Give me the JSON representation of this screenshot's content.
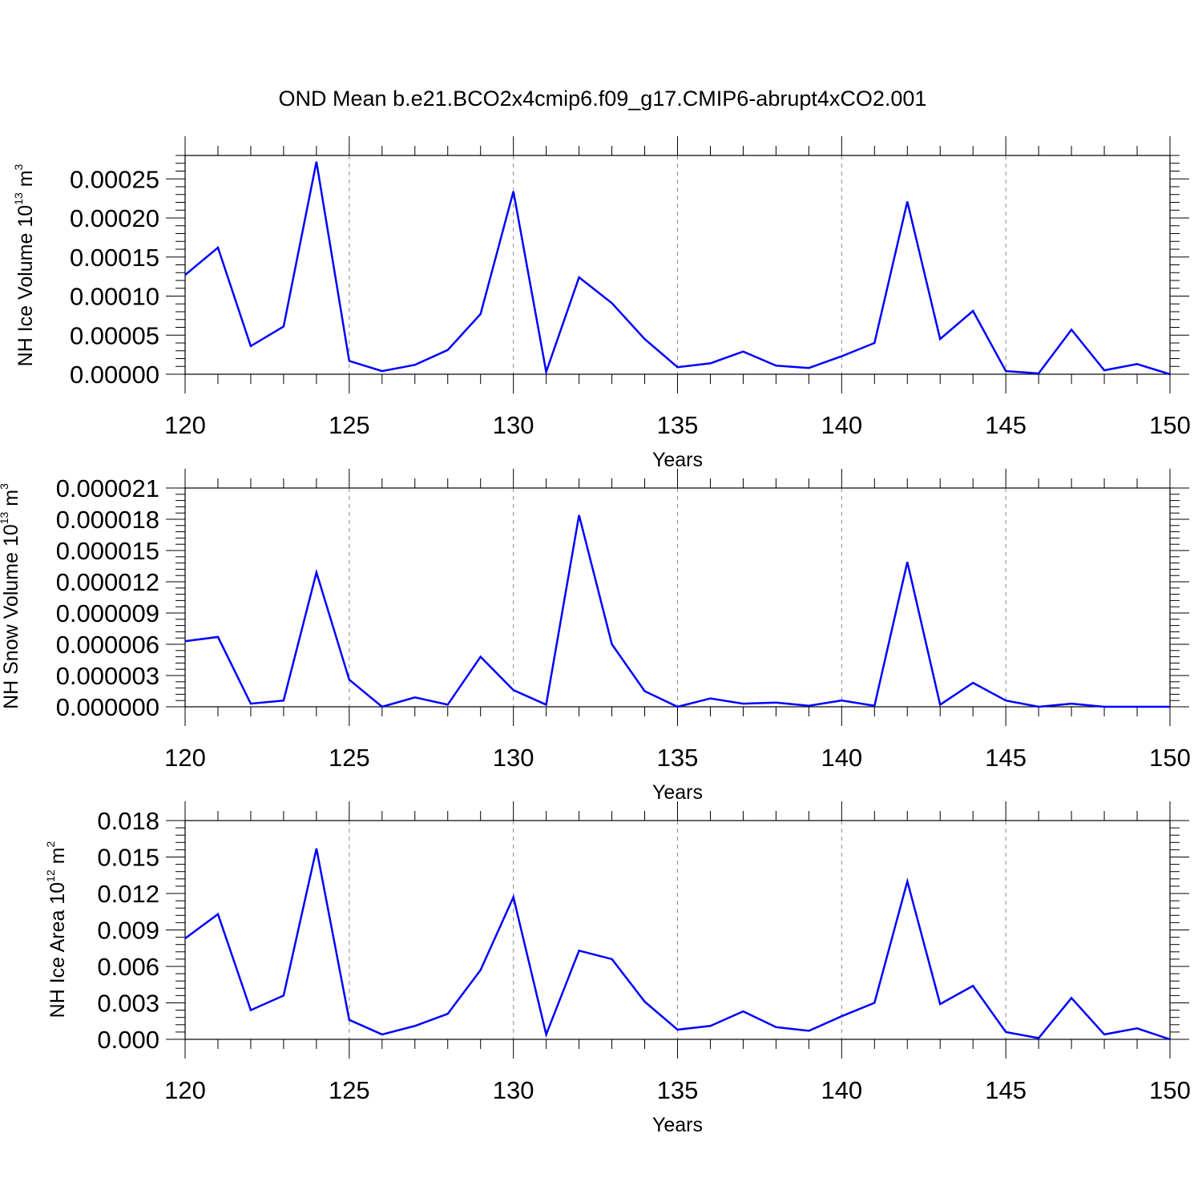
{
  "figure_title": "OND Mean b.e21.BCO2x4cmip6.f09_g17.CMIP6-abrupt4xCO2.001",
  "line_color": "#0000ff",
  "chart_data": [
    {
      "type": "line",
      "title": "",
      "xlabel": "Years",
      "ylabel": "NH Ice Volume 10",
      "ylabel_exponent": "13",
      "ylabel_unit": " m",
      "ylabel_unit_exponent": "3",
      "xlim": [
        120,
        150
      ],
      "ylim": [
        0,
        0.00028
      ],
      "x_ticks": [
        120,
        125,
        130,
        135,
        140,
        145,
        150
      ],
      "x_tick_labels": [
        "120",
        "125",
        "130",
        "135",
        "140",
        "145",
        "150"
      ],
      "y_ticks": [
        0,
        5e-05,
        0.0001,
        0.00015,
        0.0002,
        0.00025
      ],
      "y_tick_labels": [
        "0.00000",
        "0.00005",
        "0.00010",
        "0.00015",
        "0.00020",
        "0.00025"
      ],
      "grid": "vertical dashed at major x ticks",
      "x": [
        120,
        121,
        122,
        123,
        124,
        125,
        126,
        127,
        128,
        129,
        130,
        131,
        132,
        133,
        134,
        135,
        136,
        137,
        138,
        139,
        140,
        141,
        142,
        143,
        144,
        145,
        146,
        147,
        148,
        149,
        150
      ],
      "series": [
        {
          "values": [
            0.000127,
            0.000162,
            3.6e-05,
            6.1e-05,
            0.000272,
            1.7e-05,
            4e-06,
            1.2e-05,
            3.1e-05,
            7.7e-05,
            0.000234,
            3e-06,
            0.000124,
            9.1e-05,
            4.5e-05,
            9e-06,
            1.4e-05,
            2.9e-05,
            1.1e-05,
            8e-06,
            2.3e-05,
            4e-05,
            0.000221,
            4.5e-05,
            8.1e-05,
            4e-06,
            1e-06,
            5.7e-05,
            5e-06,
            1.3e-05,
            0.0
          ]
        }
      ]
    },
    {
      "type": "line",
      "title": "",
      "xlabel": "Years",
      "ylabel": "NH Snow Volume 10",
      "ylabel_exponent": "13",
      "ylabel_unit": " m",
      "ylabel_unit_exponent": "3",
      "xlim": [
        120,
        150
      ],
      "ylim": [
        0,
        2.1e-05
      ],
      "x_ticks": [
        120,
        125,
        130,
        135,
        140,
        145,
        150
      ],
      "x_tick_labels": [
        "120",
        "125",
        "130",
        "135",
        "140",
        "145",
        "150"
      ],
      "y_ticks": [
        0,
        3e-06,
        6e-06,
        9e-06,
        1.2e-05,
        1.5e-05,
        1.8e-05,
        2.1e-05
      ],
      "y_tick_labels": [
        "0.000000",
        "0.000003",
        "0.000006",
        "0.000009",
        "0.000012",
        "0.000015",
        "0.000018",
        "0.000021"
      ],
      "grid": "vertical dashed at major x ticks",
      "x": [
        120,
        121,
        122,
        123,
        124,
        125,
        126,
        127,
        128,
        129,
        130,
        131,
        132,
        133,
        134,
        135,
        136,
        137,
        138,
        139,
        140,
        141,
        142,
        143,
        144,
        145,
        146,
        147,
        148,
        149,
        150
      ],
      "series": [
        {
          "values": [
            6.3e-06,
            6.7e-06,
            3e-07,
            6e-07,
            1.29e-05,
            2.6e-06,
            0.0,
            9e-07,
            2e-07,
            4.8e-06,
            1.6e-06,
            2e-07,
            1.84e-05,
            6e-06,
            1.5e-06,
            0.0,
            8e-07,
            3e-07,
            4e-07,
            1e-07,
            6e-07,
            1e-07,
            1.39e-05,
            2e-07,
            2.3e-06,
            6e-07,
            0.0,
            3e-07,
            0.0,
            0.0,
            0.0
          ]
        }
      ]
    },
    {
      "type": "line",
      "title": "",
      "xlabel": "Years",
      "ylabel": "NH Ice Area 10",
      "ylabel_exponent": "12",
      "ylabel_unit": " m",
      "ylabel_unit_exponent": "2",
      "xlim": [
        120,
        150
      ],
      "ylim": [
        0,
        0.018
      ],
      "x_ticks": [
        120,
        125,
        130,
        135,
        140,
        145,
        150
      ],
      "x_tick_labels": [
        "120",
        "125",
        "130",
        "135",
        "140",
        "145",
        "150"
      ],
      "y_ticks": [
        0,
        0.003,
        0.006,
        0.009,
        0.012,
        0.015,
        0.018
      ],
      "y_tick_labels": [
        "0.000",
        "0.003",
        "0.006",
        "0.009",
        "0.012",
        "0.015",
        "0.018"
      ],
      "grid": "vertical dashed at major x ticks",
      "x": [
        120,
        121,
        122,
        123,
        124,
        125,
        126,
        127,
        128,
        129,
        130,
        131,
        132,
        133,
        134,
        135,
        136,
        137,
        138,
        139,
        140,
        141,
        142,
        143,
        144,
        145,
        146,
        147,
        148,
        149,
        150
      ],
      "series": [
        {
          "values": [
            0.0083,
            0.0103,
            0.0024,
            0.0036,
            0.0157,
            0.0016,
            0.0004,
            0.0011,
            0.0021,
            0.0057,
            0.0117,
            0.0004,
            0.0073,
            0.0066,
            0.0031,
            0.0008,
            0.0011,
            0.0023,
            0.001,
            0.0007,
            0.0019,
            0.003,
            0.013,
            0.0029,
            0.0044,
            0.0006,
            0.0001,
            0.0034,
            0.0004,
            0.0009,
            0.0
          ]
        }
      ]
    }
  ]
}
